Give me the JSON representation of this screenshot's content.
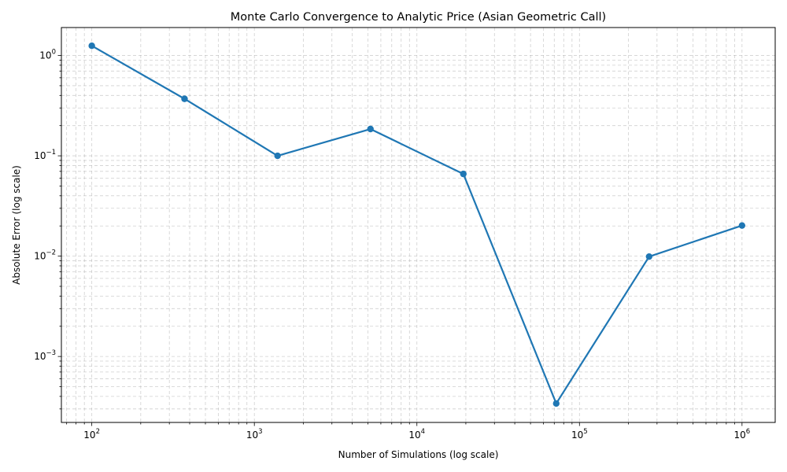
{
  "chart_data": {
    "type": "line",
    "title": "Monte Carlo Convergence to Analytic Price (Asian Geometric Call)",
    "xlabel": "Number of Simulations (log scale)",
    "ylabel": "Absolute Error (log scale)",
    "xscale": "log",
    "yscale": "log",
    "xlim": [
      65,
      1600000
    ],
    "ylim": [
      0.00022,
      1.9
    ],
    "grid": true,
    "grid_which": "both",
    "legend": "none",
    "colors": {
      "series": "#1f77b4"
    },
    "x_ticks": [
      {
        "base": "10",
        "exp": "2",
        "value": 100
      },
      {
        "base": "10",
        "exp": "3",
        "value": 1000
      },
      {
        "base": "10",
        "exp": "4",
        "value": 10000
      },
      {
        "base": "10",
        "exp": "5",
        "value": 100000
      },
      {
        "base": "10",
        "exp": "6",
        "value": 1000000
      }
    ],
    "y_ticks": [
      {
        "base": "10",
        "exp": "−3",
        "value": 0.001
      },
      {
        "base": "10",
        "exp": "−2",
        "value": 0.01
      },
      {
        "base": "10",
        "exp": "−1",
        "value": 0.1
      },
      {
        "base": "10",
        "exp": "0",
        "value": 1
      }
    ],
    "series": [
      {
        "marker": "circle",
        "x": [
          100,
          372,
          1389,
          5179,
          19307,
          71969,
          268270,
          1000000
        ],
        "y": [
          1.25,
          0.37,
          0.1,
          0.185,
          0.066,
          0.00034,
          0.0099,
          0.0202
        ]
      }
    ]
  }
}
